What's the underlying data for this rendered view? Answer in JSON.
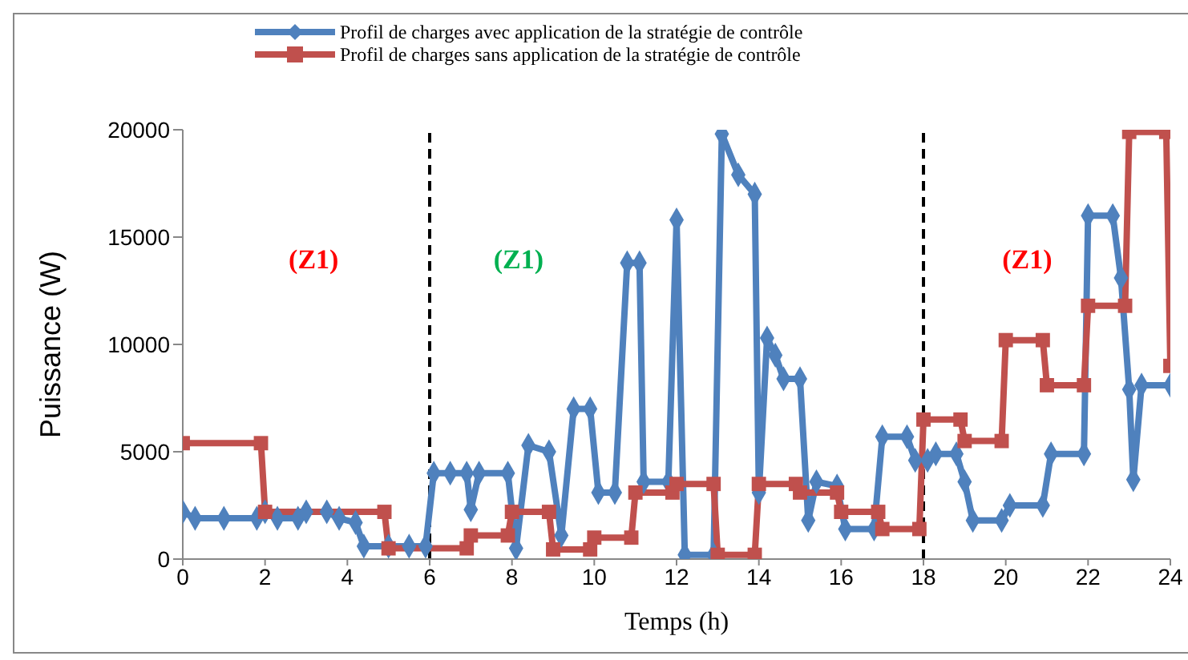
{
  "chart_data": {
    "type": "line",
    "xlabel": "Temps (h)",
    "ylabel": "Puissance (W)",
    "xlim": [
      0,
      24
    ],
    "xticks": [
      0,
      2,
      4,
      6,
      8,
      10,
      12,
      14,
      16,
      18,
      20,
      22,
      24
    ],
    "ylim": [
      0,
      20000
    ],
    "yticks": [
      0,
      5000,
      10000,
      15000,
      20000
    ],
    "grid": false,
    "legend": "top",
    "line_style": "solid",
    "series": [
      {
        "name": "Profil de charges avec application de la stratégie de contrôle",
        "color": "#4f81bd",
        "marker": "diamond",
        "x": [
          0,
          0.3,
          1,
          1.8,
          2,
          2.3,
          2.8,
          3,
          3.5,
          3.8,
          4.2,
          4.4,
          5,
          5.5,
          5.9,
          6.1,
          6.5,
          6.9,
          7,
          7.2,
          7.9,
          8.1,
          8.4,
          8.9,
          9.2,
          9.5,
          9.9,
          10.1,
          10.5,
          10.8,
          11.1,
          11.2,
          11.8,
          12,
          12.2,
          12.9,
          13.1,
          13.5,
          13.9,
          14,
          14.2,
          14.4,
          14.6,
          15,
          15.2,
          15.4,
          15.9,
          16.1,
          16.8,
          17,
          17.6,
          17.8,
          18.1,
          18.3,
          18.8,
          19,
          19.2,
          19.9,
          20.1,
          20.9,
          21.1,
          21.9,
          22,
          22.6,
          22.8,
          23,
          23.1,
          23.3,
          24
        ],
        "values": [
          2200,
          1900,
          1900,
          1900,
          2200,
          1900,
          1900,
          2200,
          2200,
          1900,
          1700,
          600,
          600,
          600,
          600,
          4000,
          4000,
          4000,
          2300,
          4000,
          4000,
          500,
          5300,
          5000,
          1100,
          7000,
          7000,
          3100,
          3100,
          13800,
          13800,
          3600,
          3600,
          15800,
          200,
          200,
          19800,
          17900,
          17000,
          3100,
          10300,
          9500,
          8400,
          8400,
          1800,
          3600,
          3400,
          1400,
          1400,
          5700,
          5700,
          4600,
          4600,
          4900,
          4900,
          3600,
          1800,
          1800,
          2500,
          2500,
          4900,
          4900,
          16000,
          16000,
          13100,
          7900,
          3700,
          8100,
          8100
        ]
      },
      {
        "name": "Profil de charges sans application de la stratégie de contrôle",
        "color": "#c0504d",
        "marker": "square",
        "x": [
          0,
          1.9,
          2,
          4.9,
          5,
          6.9,
          7,
          7.9,
          8,
          8.9,
          9,
          9.9,
          10,
          10.9,
          11,
          11.9,
          12,
          12.9,
          13,
          13.9,
          14,
          14.9,
          15,
          15.9,
          16,
          16.9,
          17,
          17.9,
          18,
          18.9,
          19,
          19.9,
          20,
          20.9,
          21,
          21.9,
          22,
          22.9,
          23,
          23.9,
          24
        ],
        "values": [
          5400,
          5400,
          2200,
          2200,
          500,
          500,
          1100,
          1100,
          2200,
          2200,
          450,
          450,
          1000,
          1000,
          3100,
          3100,
          3500,
          3500,
          200,
          200,
          3500,
          3500,
          3100,
          3100,
          2200,
          2200,
          1400,
          1400,
          6500,
          6500,
          5500,
          5500,
          10200,
          10200,
          8100,
          8100,
          11800,
          11800,
          19900,
          19900,
          9000
        ]
      }
    ],
    "ref_lines": [
      {
        "axis": "x",
        "value": 6,
        "color": "#000000",
        "line_style": "dashed"
      },
      {
        "axis": "x",
        "value": 18,
        "color": "#000000",
        "line_style": "dashed"
      }
    ],
    "annotations": [
      "(Z1)",
      "(Z1)",
      "(Z1)"
    ]
  }
}
